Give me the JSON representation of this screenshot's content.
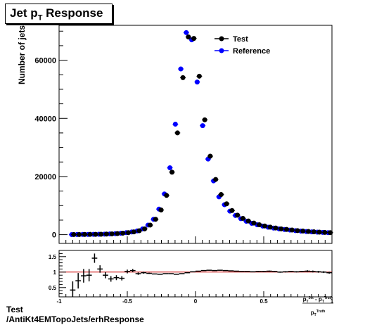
{
  "title": {
    "main": "Jet p",
    "sub": "T",
    "rest": " Response"
  },
  "footer": {
    "line1": "Test",
    "line2": "/AntiKt4EMTopoJets/erhResponse"
  },
  "chart_data": [
    {
      "type": "scatter",
      "ylabel": "Number of jets",
      "xlim": [
        -1,
        1
      ],
      "ylim": [
        -3000,
        72000
      ],
      "yticks": [
        0,
        20000,
        40000,
        60000
      ],
      "ytick_labels": [
        "0",
        "20000",
        "40000",
        "60000"
      ],
      "legend": {
        "placement": "top-center",
        "entries": [
          "Test",
          "Reference"
        ]
      },
      "colors": {
        "Test": "#000000",
        "Reference": "#0000ff"
      },
      "x": [
        -0.9,
        -0.86,
        -0.82,
        -0.78,
        -0.74,
        -0.7,
        -0.66,
        -0.62,
        -0.58,
        -0.54,
        -0.5,
        -0.46,
        -0.42,
        -0.38,
        -0.34,
        -0.3,
        -0.26,
        -0.22,
        -0.18,
        -0.14,
        -0.1,
        -0.06,
        -0.02,
        0.02,
        0.06,
        0.1,
        0.14,
        0.18,
        0.22,
        0.26,
        0.3,
        0.34,
        0.38,
        0.42,
        0.46,
        0.5,
        0.54,
        0.58,
        0.62,
        0.66,
        0.7,
        0.74,
        0.78,
        0.82,
        0.86,
        0.9,
        0.94,
        0.98
      ],
      "series": [
        {
          "name": "Test",
          "values": [
            40,
            60,
            80,
            100,
            120,
            150,
            200,
            280,
            380,
            520,
            700,
            950,
            1350,
            2000,
            3300,
            5300,
            8500,
            13500,
            21500,
            35000,
            54000,
            68000,
            67500,
            54500,
            39500,
            27000,
            19000,
            13800,
            10600,
            8300,
            6700,
            5600,
            4700,
            4000,
            3400,
            3000,
            2600,
            2300,
            2000,
            1800,
            1600,
            1400,
            1250,
            1100,
            980,
            870,
            780,
            700
          ]
        },
        {
          "name": "Reference",
          "values": [
            35,
            55,
            70,
            90,
            110,
            140,
            190,
            260,
            360,
            500,
            680,
            920,
            1300,
            2000,
            3300,
            5300,
            8800,
            14000,
            23000,
            38000,
            57000,
            69500,
            67000,
            52500,
            37500,
            26000,
            18500,
            13000,
            10300,
            8100,
            6600,
            5500,
            4600,
            3900,
            3400,
            2950,
            2550,
            2250,
            2000,
            1780,
            1580,
            1390,
            1240,
            1090,
            970,
            860,
            770,
            690
          ]
        }
      ]
    },
    {
      "type": "scatter",
      "xlabel": "(p_T^{Jet} - p_T^{Truth}) / p_T^{Truth}",
      "xlabel_num_main": "p",
      "xlabel_num_jet": "Jet",
      "xlabel_num_sep": " - p",
      "xlabel_num_truth": "Truth",
      "xlabel_den_main": "p",
      "xlabel_den_truth": "Truth",
      "xlabel_sub": "T",
      "xlim": [
        -1,
        1
      ],
      "ylim": [
        0.2,
        1.7
      ],
      "xticks": [
        -1,
        -0.5,
        0,
        0.5,
        1
      ],
      "xtick_labels": [
        "-1",
        "-0.5",
        "0",
        "0.5",
        "1"
      ],
      "yticks": [
        0.5,
        1,
        1.5
      ],
      "ytick_labels": [
        "0.5",
        "1",
        "1.5"
      ],
      "reference_line": 1,
      "reference_color": "#cc0000",
      "x": [
        -0.9,
        -0.86,
        -0.82,
        -0.78,
        -0.74,
        -0.7,
        -0.66,
        -0.62,
        -0.58,
        -0.54,
        -0.5,
        -0.46,
        -0.42,
        -0.38,
        -0.34,
        -0.3,
        -0.26,
        -0.22,
        -0.18,
        -0.14,
        -0.1,
        -0.06,
        -0.02,
        0.02,
        0.06,
        0.1,
        0.14,
        0.18,
        0.22,
        0.26,
        0.3,
        0.34,
        0.38,
        0.42,
        0.46,
        0.5,
        0.54,
        0.58,
        0.62,
        0.66,
        0.7,
        0.74,
        0.78,
        0.82,
        0.86,
        0.9,
        0.94,
        0.98
      ],
      "values": [
        0.42,
        0.72,
        0.88,
        0.9,
        1.45,
        1.1,
        0.9,
        0.78,
        0.82,
        0.8,
        1.02,
        1.05,
        0.95,
        0.98,
        0.96,
        0.94,
        0.93,
        0.95,
        0.95,
        0.93,
        0.95,
        0.98,
        1.01,
        1.03,
        1.05,
        1.06,
        1.05,
        1.06,
        1.05,
        1.04,
        1.03,
        1.02,
        1.02,
        1.01,
        1.02,
        1.02,
        1.03,
        1.02,
        1.0,
        1.01,
        1.02,
        1.01,
        1.02,
        1.03,
        1.02,
        1.01,
        1.0,
        0.98
      ],
      "errors": [
        0.28,
        0.25,
        0.22,
        0.2,
        0.15,
        0.12,
        0.1,
        0.09,
        0.08,
        0.07,
        0.06,
        0.05,
        0.04,
        0.03,
        0.02,
        0.01,
        0.01,
        0.01,
        0.01,
        0.01,
        0.01,
        0.01,
        0.01,
        0.01,
        0.01,
        0.01,
        0.01,
        0.01,
        0.01,
        0.01,
        0.01,
        0.01,
        0.01,
        0.01,
        0.02,
        0.02,
        0.02,
        0.02,
        0.02,
        0.02,
        0.02,
        0.02,
        0.02,
        0.03,
        0.03,
        0.03,
        0.03,
        0.03
      ]
    }
  ]
}
